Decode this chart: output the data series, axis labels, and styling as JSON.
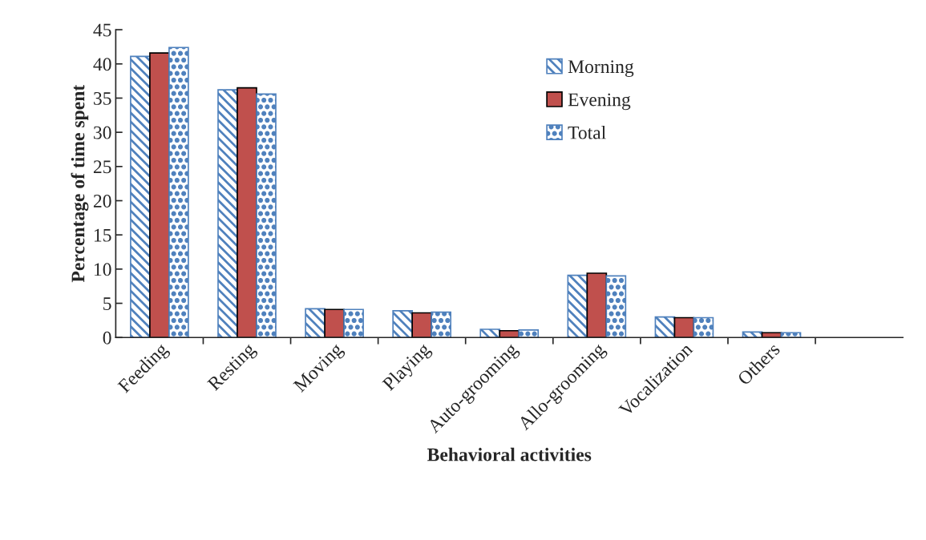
{
  "chart_data": {
    "type": "bar",
    "xlabel": "Behavioral activities",
    "ylabel": "Percentage of time spent",
    "categories": [
      "Feeding",
      "Resting",
      "Moving",
      "Playing",
      "Auto-grooming",
      "Allo-grooming",
      "Vocalization",
      "Others",
      null
    ],
    "series": [
      {
        "name": "Morning",
        "color": "#4f81bd",
        "values": [
          41.1,
          36.2,
          4.2,
          3.9,
          1.2,
          9.1,
          3.0,
          0.8,
          null
        ]
      },
      {
        "name": "Evening",
        "color": "#c0504d",
        "values": [
          41.6,
          36.5,
          4.1,
          3.6,
          1.0,
          9.4,
          2.9,
          0.7,
          null
        ]
      },
      {
        "name": "Total",
        "color": "#4f81bd",
        "values": [
          42.4,
          35.6,
          4.1,
          3.7,
          1.1,
          9.0,
          2.9,
          0.7,
          null
        ]
      }
    ],
    "ylim": [
      0,
      45
    ],
    "yticks": [
      0,
      5,
      10,
      15,
      20,
      25,
      30,
      35,
      40,
      45
    ],
    "grid": false,
    "legend": "top right"
  }
}
